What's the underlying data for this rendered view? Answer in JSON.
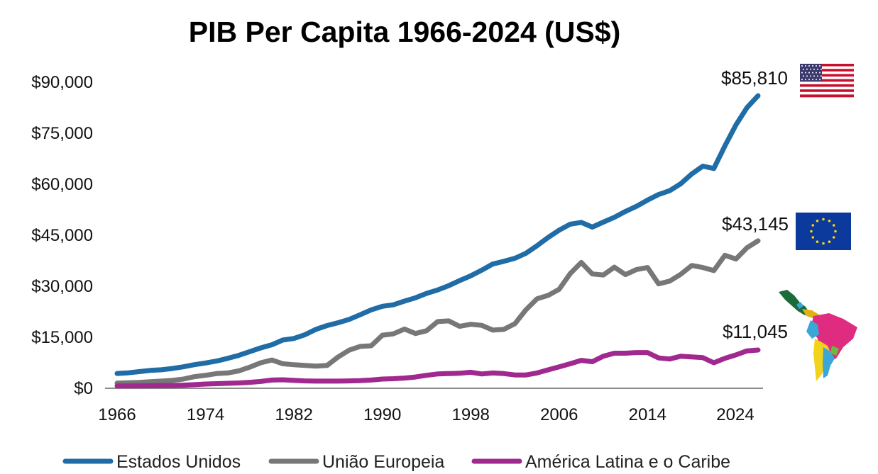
{
  "chart_data": {
    "type": "line",
    "title": "PIB Per Capita 1966-2024 (US$)",
    "xlabel": "",
    "ylabel": "",
    "ylim": [
      0,
      90000
    ],
    "xlim": [
      1966,
      2024
    ],
    "grid": false,
    "legend_placement": "bottom",
    "y_ticks": [
      "$0",
      "$15,000",
      "$30,000",
      "$45,000",
      "$60,000",
      "$75,000",
      "$90,000"
    ],
    "y_tick_values": [
      0,
      15000,
      30000,
      45000,
      60000,
      75000,
      90000
    ],
    "x_ticks": [
      "1966",
      "1974",
      "1982",
      "1990",
      "1998",
      "2006",
      "2014",
      "2024"
    ],
    "x_tick_values": [
      1966,
      1974,
      1982,
      1990,
      1998,
      2006,
      2014,
      2024
    ],
    "x_start": 1966,
    "series": [
      {
        "name": "Estados Unidos",
        "color": "#1f6ca6",
        "end_label": "$85,810",
        "icon": "us-flag-icon",
        "values": [
          4146,
          4336,
          4696,
          5032,
          5234,
          5609,
          6094,
          6726,
          7226,
          7801,
          8592,
          9453,
          10565,
          11674,
          12575,
          13976,
          14434,
          15544,
          17121,
          18237,
          19071,
          20039,
          21417,
          22857,
          23889,
          24342,
          25419,
          26387,
          27695,
          28691,
          29968,
          31459,
          32854,
          34515,
          36330,
          37134,
          38023,
          39496,
          41713,
          44115,
          46299,
          48050,
          48570,
          47195,
          48651,
          50066,
          51784,
          53291,
          55124,
          56763,
          57867,
          59915,
          62805,
          65095,
          64412,
          71056,
          77247,
          82304,
          85810
        ]
      },
      {
        "name": "União Europeia",
        "color": "#777777",
        "end_label": "$43,145",
        "icon": "eu-flag-icon",
        "values": [
          1300,
          1400,
          1500,
          1700,
          1900,
          2100,
          2500,
          3200,
          3600,
          4100,
          4300,
          4900,
          6000,
          7300,
          8100,
          7000,
          6700,
          6500,
          6300,
          6500,
          9000,
          11000,
          12100,
          12300,
          15400,
          15800,
          17200,
          15900,
          16700,
          19400,
          19600,
          18000,
          18600,
          18300,
          16900,
          17100,
          18800,
          22900,
          26100,
          27100,
          28900,
          33500,
          36800,
          33400,
          33100,
          35400,
          33200,
          34700,
          35300,
          30500,
          31300,
          33300,
          35900,
          35300,
          34400,
          38900,
          37800,
          41100,
          43145
        ]
      },
      {
        "name": "América Latina e o Caribe",
        "color": "#a0298f",
        "end_label": "$11,045",
        "icon": "latin-america-map-icon",
        "values": [
          450,
          480,
          500,
          530,
          560,
          620,
          700,
          850,
          1050,
          1150,
          1250,
          1350,
          1550,
          1800,
          2200,
          2300,
          2100,
          1950,
          1900,
          1900,
          1900,
          1950,
          2050,
          2200,
          2500,
          2600,
          2800,
          3100,
          3600,
          4000,
          4100,
          4200,
          4500,
          4000,
          4300,
          4100,
          3700,
          3700,
          4300,
          5200,
          6100,
          7000,
          8000,
          7600,
          9200,
          10100,
          10100,
          10300,
          10300,
          8700,
          8400,
          9200,
          9000,
          8800,
          7300,
          8600,
          9600,
          10800,
          11045
        ]
      }
    ]
  }
}
